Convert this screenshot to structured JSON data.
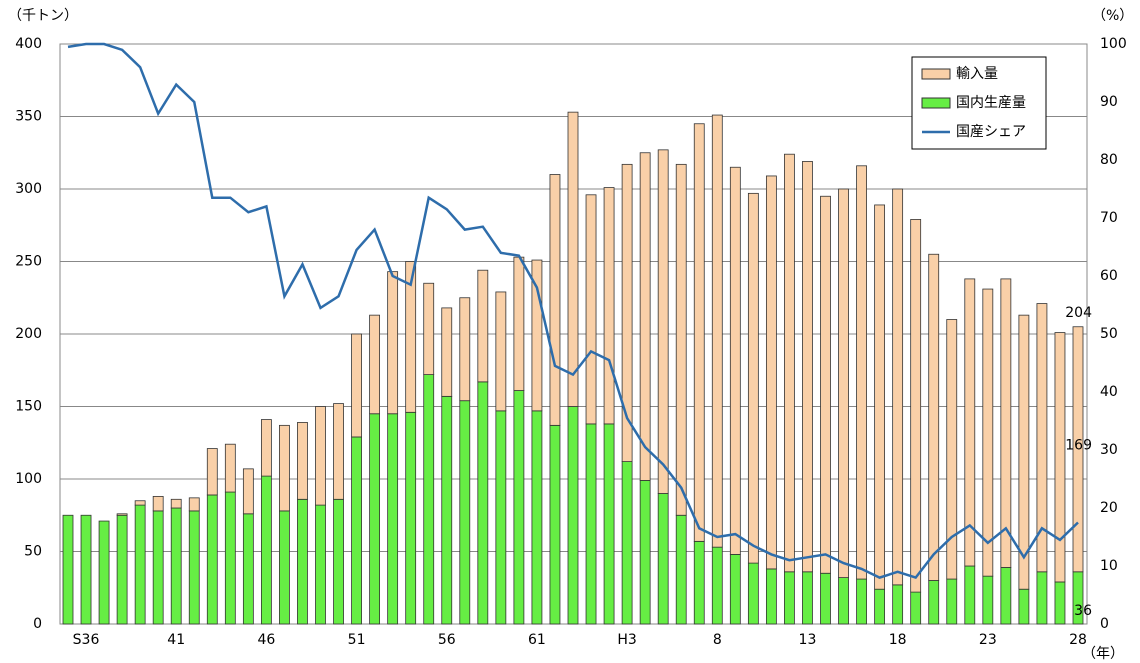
{
  "chart_data": {
    "type": "bar",
    "stacked": true,
    "y_axis_label": "（千トン）",
    "y2_axis_label": "（%）",
    "x_axis_label": "（年）",
    "categories": [
      null,
      "S36",
      null,
      null,
      null,
      null,
      "41",
      null,
      null,
      null,
      null,
      "46",
      null,
      null,
      null,
      null,
      "51",
      null,
      null,
      null,
      null,
      "56",
      null,
      null,
      null,
      null,
      "61",
      null,
      null,
      null,
      null,
      "H3",
      null,
      null,
      null,
      null,
      "8",
      null,
      null,
      null,
      null,
      "13",
      null,
      null,
      null,
      null,
      "18",
      null,
      null,
      null,
      null,
      "23",
      null,
      null,
      null,
      null,
      "28"
    ],
    "series": [
      {
        "name": "輸入量",
        "color": "#f9d0a8",
        "values": [
          0,
          0,
          0,
          1,
          3,
          10,
          6,
          9,
          32,
          33,
          31,
          39,
          59,
          53,
          68,
          66,
          71,
          68,
          98,
          104,
          63,
          61,
          71,
          77,
          82,
          92,
          104,
          173,
          203,
          158,
          163,
          205,
          226,
          237,
          242,
          288,
          298,
          267,
          255,
          271,
          288,
          283,
          260,
          268,
          285,
          265,
          273,
          257,
          225,
          179,
          198,
          198,
          199,
          189,
          185,
          172,
          169
        ]
      },
      {
        "name": "国内生産量",
        "color": "#66ee44",
        "values": [
          75,
          75,
          71,
          75,
          82,
          78,
          80,
          78,
          89,
          91,
          76,
          102,
          78,
          86,
          82,
          86,
          129,
          145,
          145,
          146,
          172,
          157,
          154,
          167,
          147,
          161,
          147,
          137,
          150,
          138,
          138,
          112,
          99,
          90,
          75,
          57,
          53,
          48,
          42,
          38,
          36,
          36,
          35,
          32,
          31,
          24,
          27,
          22,
          30,
          31,
          40,
          33,
          39,
          24,
          36,
          29,
          36
        ]
      },
      {
        "name": "国産シェア",
        "color": "#2e6dab",
        "type": "line",
        "axis": "y2",
        "values": [
          99.5,
          100,
          100,
          99,
          96,
          88,
          93,
          90,
          73.5,
          73.5,
          71,
          72,
          56.5,
          62,
          54.5,
          56.5,
          64.5,
          68,
          60,
          58.5,
          73.5,
          71.5,
          68,
          68.5,
          64,
          63.5,
          58,
          44.5,
          43,
          47,
          45.5,
          35.5,
          30.5,
          27.5,
          23.5,
          16.5,
          15,
          15.5,
          13.5,
          12,
          11,
          11.5,
          12,
          10.5,
          9.5,
          8,
          9,
          8,
          12,
          15,
          17,
          14,
          16.5,
          11.5,
          16.5,
          14.5,
          17.5
        ]
      }
    ],
    "annotations": [
      204,
      169,
      36
    ],
    "ylim": [
      0,
      400
    ],
    "yticks": [
      0,
      50,
      100,
      150,
      200,
      250,
      300,
      350,
      400
    ],
    "y2lim": [
      0,
      100
    ],
    "y2ticks": [
      0,
      10,
      20,
      30,
      40,
      50,
      60,
      70,
      80,
      90,
      100
    ],
    "grid": true,
    "legend": "top-right"
  }
}
